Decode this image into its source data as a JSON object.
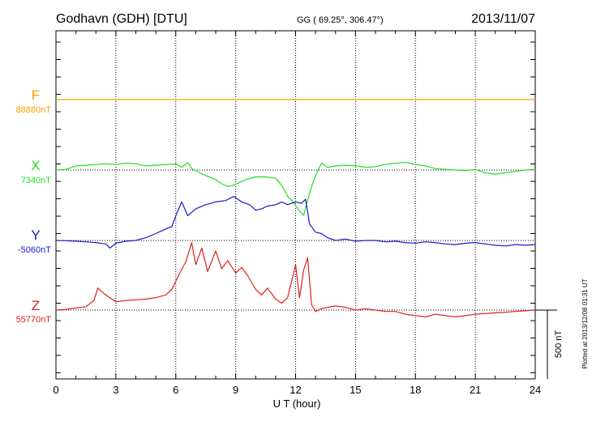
{
  "header": {
    "station": "Godhavn (GDH)  [DTU]",
    "coords": "GG ( 69.25°, 306.47°)",
    "date": "2013/11/07"
  },
  "footer_note": "Plotted at 2013/12/08 01:31  UT",
  "chart_data": {
    "type": "line",
    "title": "Godhavn (GDH)  [DTU]",
    "xlabel": "U T (hour)",
    "xlim": [
      0,
      24
    ],
    "xticks": [
      0,
      3,
      6,
      9,
      12,
      15,
      18,
      21,
      24
    ],
    "scale_label": "500 nT",
    "scale_nT": 500,
    "series": [
      {
        "name": "F",
        "baseline_label": "88880nT",
        "baseline_nT": 88880,
        "color": "#f5a300",
        "x": [
          0,
          6,
          12,
          18,
          24
        ],
        "values": [
          88880,
          88880,
          88880,
          88880,
          88880
        ]
      },
      {
        "name": "X",
        "baseline_label": "7340nT",
        "baseline_nT": 7340,
        "color": "#22dd22",
        "x": [
          0,
          0.5,
          1,
          1.5,
          2,
          2.5,
          3,
          3.5,
          4,
          4.5,
          5,
          5.5,
          6,
          6.3,
          6.6,
          6.8,
          7.2,
          7.5,
          8,
          8.3,
          8.6,
          8.9,
          9.2,
          9.5,
          10,
          10.5,
          11,
          11.3,
          11.6,
          11.8,
          12,
          12.2,
          12.4,
          12.6,
          12.8,
          13,
          13.3,
          13.6,
          14,
          14.5,
          15,
          15.5,
          16,
          16.5,
          17,
          17.5,
          18,
          18.5,
          19,
          19.5,
          20,
          20.5,
          21,
          21.5,
          22,
          22.5,
          23,
          23.5,
          24
        ],
        "values": [
          7340,
          7345,
          7370,
          7375,
          7380,
          7385,
          7380,
          7390,
          7385,
          7370,
          7375,
          7380,
          7385,
          7360,
          7395,
          7350,
          7320,
          7300,
          7270,
          7240,
          7220,
          7230,
          7250,
          7270,
          7290,
          7290,
          7280,
          7230,
          7150,
          7120,
          7080,
          7040,
          7010,
          7120,
          7220,
          7300,
          7390,
          7360,
          7370,
          7375,
          7370,
          7360,
          7365,
          7380,
          7390,
          7395,
          7380,
          7370,
          7350,
          7345,
          7340,
          7335,
          7345,
          7320,
          7310,
          7320,
          7330,
          7340,
          7345
        ]
      },
      {
        "name": "Y",
        "baseline_label": "-5060nT",
        "baseline_nT": -5060,
        "color": "#1a1acc",
        "x": [
          0,
          0.5,
          1,
          1.5,
          2,
          2.5,
          2.7,
          3,
          3.5,
          4,
          4.5,
          5,
          5.3,
          5.6,
          5.8,
          6,
          6.3,
          6.6,
          7,
          7.5,
          8,
          8.5,
          8.9,
          9.3,
          9.7,
          10,
          10.3,
          10.6,
          11,
          11.3,
          11.6,
          12,
          12.3,
          12.5,
          12.7,
          13,
          13.3,
          13.6,
          14,
          14.5,
          15,
          15.5,
          16,
          16.5,
          17,
          17.5,
          18,
          18.5,
          19,
          19.5,
          20,
          20.5,
          21,
          21.5,
          22,
          22.5,
          23,
          23.5,
          24
        ],
        "values": [
          -5060,
          -5062,
          -5065,
          -5070,
          -5075,
          -5085,
          -5115,
          -5080,
          -5065,
          -5060,
          -5040,
          -5010,
          -4990,
          -4970,
          -4960,
          -4880,
          -4780,
          -4880,
          -4830,
          -4800,
          -4780,
          -4770,
          -4740,
          -4780,
          -4800,
          -4840,
          -4830,
          -4810,
          -4800,
          -4780,
          -4800,
          -4780,
          -4790,
          -4760,
          -4940,
          -5000,
          -5010,
          -5040,
          -5060,
          -5050,
          -5065,
          -5060,
          -5060,
          -5070,
          -5065,
          -5075,
          -5080,
          -5070,
          -5075,
          -5085,
          -5090,
          -5080,
          -5075,
          -5085,
          -5095,
          -5100,
          -5090,
          -5095,
          -5090
        ]
      },
      {
        "name": "Z",
        "baseline_label": "55770nT",
        "baseline_nT": 55770,
        "color": "#e02020",
        "x": [
          0,
          0.5,
          1,
          1.5,
          1.9,
          2.1,
          2.4,
          2.7,
          3,
          3.5,
          4,
          4.5,
          5,
          5.5,
          5.8,
          6,
          6.2,
          6.5,
          6.8,
          7,
          7.3,
          7.6,
          8,
          8.3,
          8.6,
          9,
          9.3,
          9.6,
          10,
          10.3,
          10.6,
          11,
          11.3,
          11.6,
          11.8,
          12,
          12.2,
          12.4,
          12.6,
          12.8,
          13,
          13.3,
          13.6,
          14,
          14.5,
          15,
          15.5,
          16,
          16.5,
          17,
          17.5,
          18,
          18.5,
          19,
          19.5,
          20,
          20.5,
          21,
          21.5,
          22,
          22.5,
          23,
          23.5,
          24
        ],
        "values": [
          55770,
          55775,
          55785,
          55795,
          55840,
          55930,
          55890,
          55860,
          55830,
          55840,
          55845,
          55850,
          55860,
          55880,
          55920,
          55980,
          56040,
          56120,
          56260,
          56100,
          56220,
          56050,
          56200,
          56070,
          56130,
          56040,
          56080,
          56020,
          55920,
          55880,
          55930,
          55850,
          55820,
          55860,
          55980,
          56100,
          55860,
          56060,
          56150,
          55810,
          55760,
          55780,
          55790,
          55800,
          55790,
          55770,
          55780,
          55770,
          55760,
          55760,
          55740,
          55730,
          55720,
          55740,
          55730,
          55720,
          55730,
          55740,
          55745,
          55750,
          55755,
          55760,
          55765,
          55770
        ]
      }
    ]
  }
}
